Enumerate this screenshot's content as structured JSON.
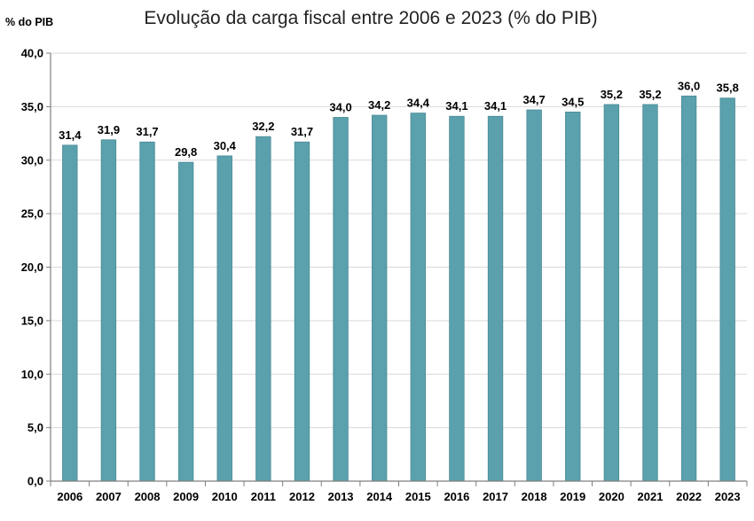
{
  "chart_data": {
    "type": "bar",
    "title": "Evolução da carga fiscal entre 2006 e 2023 (% do PIB)",
    "ylabel": "% do PIB",
    "xlabel": "",
    "categories": [
      "2006",
      "2007",
      "2008",
      "2009",
      "2010",
      "2011",
      "2012",
      "2013",
      "2014",
      "2015",
      "2016",
      "2017",
      "2018",
      "2019",
      "2020",
      "2021",
      "2022",
      "2023"
    ],
    "values": [
      31.4,
      31.9,
      31.7,
      29.8,
      30.4,
      32.2,
      31.7,
      34.0,
      34.2,
      34.4,
      34.1,
      34.1,
      34.7,
      34.5,
      35.2,
      35.2,
      36.0,
      35.8
    ],
    "value_labels": [
      "31,4",
      "31,9",
      "31,7",
      "29,8",
      "30,4",
      "32,2",
      "31,7",
      "34,0",
      "34,2",
      "34,4",
      "34,1",
      "34,1",
      "34,7",
      "34,5",
      "35,2",
      "35,2",
      "36,0",
      "35,8"
    ],
    "ylim": [
      0,
      40
    ],
    "yticks": [
      0,
      5,
      10,
      15,
      20,
      25,
      30,
      35,
      40
    ],
    "ytick_labels": [
      "0,0",
      "5,0",
      "10,0",
      "15,0",
      "20,0",
      "25,0",
      "30,0",
      "35,0",
      "40,0"
    ],
    "grid": true,
    "legend": "none",
    "colors": {
      "bar": "#5aa1ad",
      "bar_edge": "#4a8a96",
      "grid": "#d9d9d9",
      "axis": "#7f7f7f",
      "text": "#000000",
      "title": "#222222"
    }
  }
}
